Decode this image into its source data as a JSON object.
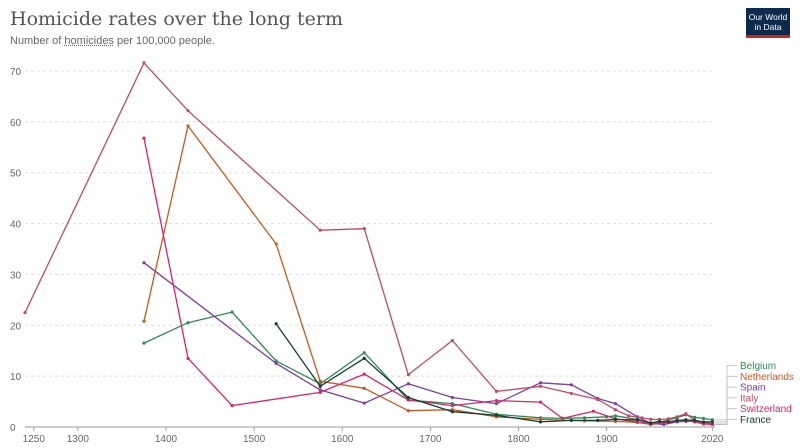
{
  "header": {
    "title": "Homicide rates over the long term",
    "subtitle_prefix": "Number of ",
    "subtitle_link": "homicides",
    "subtitle_suffix": " per 100,000 people."
  },
  "logo": {
    "line1": "Our World",
    "line2": "in Data",
    "bg_color": "#0c2b4c",
    "accent_color": "#ce261e"
  },
  "chart_data": {
    "type": "line",
    "title": "Homicide rates over the long term",
    "subtitle": "Number of homicides per 100,000 people.",
    "xlim": [
      1240,
      2023
    ],
    "ylim": [
      0,
      70
    ],
    "x_ticks": [
      1250,
      1300,
      1400,
      1500,
      1600,
      1700,
      1800,
      1900,
      2020
    ],
    "y_ticks": [
      0,
      10,
      20,
      30,
      40,
      50,
      60,
      70
    ],
    "grid": "horizontal-dashed",
    "legend": "right-end-labels",
    "series": [
      {
        "name": "Belgium",
        "color": "#2e8b57",
        "points": [
          [
            1375,
            16.5
          ],
          [
            1425,
            20.5
          ],
          [
            1475,
            22.6
          ],
          [
            1525,
            13.0
          ],
          [
            1575,
            8.5
          ],
          [
            1625,
            14.6
          ],
          [
            1675,
            5.3
          ],
          [
            1725,
            4.6
          ],
          [
            1775,
            2.5
          ],
          [
            1825,
            1.8
          ],
          [
            1850,
            1.7
          ],
          [
            1875,
            1.8
          ],
          [
            1900,
            2.0
          ],
          [
            1910,
            2.2
          ],
          [
            1935,
            1.5
          ],
          [
            1950,
            0.8
          ],
          [
            1960,
            0.9
          ],
          [
            1970,
            1.4
          ],
          [
            1980,
            1.8
          ],
          [
            1990,
            2.4
          ],
          [
            2000,
            1.9
          ],
          [
            2010,
            1.7
          ],
          [
            2020,
            1.4
          ]
        ]
      },
      {
        "name": "Netherlands",
        "color": "#c55a1e",
        "points": [
          [
            1375,
            20.8
          ],
          [
            1425,
            59.2
          ],
          [
            1525,
            36.0
          ],
          [
            1575,
            9.0
          ],
          [
            1625,
            7.6
          ],
          [
            1675,
            3.2
          ],
          [
            1725,
            3.4
          ],
          [
            1775,
            2.0
          ],
          [
            1825,
            1.5
          ],
          [
            1875,
            1.2
          ],
          [
            1910,
            1.1
          ],
          [
            1935,
            0.9
          ],
          [
            1950,
            0.5
          ],
          [
            1970,
            0.9
          ],
          [
            1980,
            1.2
          ],
          [
            1990,
            1.4
          ],
          [
            2000,
            1.2
          ],
          [
            2010,
            0.9
          ],
          [
            2020,
            0.6
          ]
        ]
      },
      {
        "name": "Spain",
        "color": "#7b3f9e",
        "points": [
          [
            1375,
            32.3
          ],
          [
            1525,
            12.5
          ],
          [
            1575,
            7.3
          ],
          [
            1625,
            4.7
          ],
          [
            1675,
            8.5
          ],
          [
            1725,
            5.8
          ],
          [
            1775,
            4.6
          ],
          [
            1825,
            8.7
          ],
          [
            1860,
            8.3
          ],
          [
            1890,
            5.6
          ],
          [
            1910,
            4.6
          ],
          [
            1935,
            2.0
          ],
          [
            1950,
            0.7
          ],
          [
            1965,
            0.5
          ],
          [
            1980,
            1.0
          ],
          [
            1990,
            1.1
          ],
          [
            2000,
            1.1
          ],
          [
            2010,
            0.9
          ],
          [
            2020,
            0.6
          ]
        ]
      },
      {
        "name": "Italy",
        "color": "#bf4a6a",
        "points": [
          [
            1240,
            22.5
          ],
          [
            1375,
            71.6
          ],
          [
            1425,
            62.2
          ],
          [
            1575,
            38.7
          ],
          [
            1625,
            39.0
          ],
          [
            1675,
            10.3
          ],
          [
            1725,
            17.0
          ],
          [
            1775,
            7.0
          ],
          [
            1825,
            8.0
          ],
          [
            1860,
            6.6
          ],
          [
            1890,
            5.4
          ],
          [
            1910,
            3.4
          ],
          [
            1925,
            2.2
          ],
          [
            1940,
            1.8
          ],
          [
            1950,
            1.5
          ],
          [
            1960,
            1.5
          ],
          [
            1970,
            1.6
          ],
          [
            1980,
            2.0
          ],
          [
            1990,
            2.6
          ],
          [
            2000,
            1.3
          ],
          [
            2010,
            0.9
          ],
          [
            2020,
            0.5
          ]
        ]
      },
      {
        "name": "Switzerland",
        "color": "#d6246e",
        "points": [
          [
            1375,
            56.8
          ],
          [
            1425,
            13.5
          ],
          [
            1475,
            4.2
          ],
          [
            1575,
            6.8
          ],
          [
            1625,
            10.4
          ],
          [
            1675,
            5.3
          ],
          [
            1725,
            4.2
          ],
          [
            1775,
            5.2
          ],
          [
            1825,
            4.9
          ],
          [
            1850,
            1.7
          ],
          [
            1885,
            3.1
          ],
          [
            1910,
            1.6
          ],
          [
            1935,
            1.0
          ],
          [
            1950,
            0.6
          ],
          [
            1970,
            1.0
          ],
          [
            1990,
            1.2
          ],
          [
            2000,
            1.0
          ],
          [
            2010,
            0.6
          ],
          [
            2020,
            0.5
          ]
        ]
      },
      {
        "name": "France",
        "color": "#18402e",
        "points": [
          [
            1525,
            20.3
          ],
          [
            1575,
            8.0
          ],
          [
            1625,
            13.5
          ],
          [
            1675,
            5.8
          ],
          [
            1725,
            3.0
          ],
          [
            1775,
            2.3
          ],
          [
            1825,
            1.0
          ],
          [
            1860,
            1.3
          ],
          [
            1890,
            1.3
          ],
          [
            1910,
            1.5
          ],
          [
            1935,
            1.4
          ],
          [
            1950,
            0.8
          ],
          [
            1960,
            1.1
          ],
          [
            1970,
            1.0
          ],
          [
            1980,
            1.3
          ],
          [
            1990,
            1.4
          ],
          [
            2000,
            1.3
          ],
          [
            2010,
            1.0
          ],
          [
            2020,
            1.0
          ]
        ]
      }
    ]
  }
}
